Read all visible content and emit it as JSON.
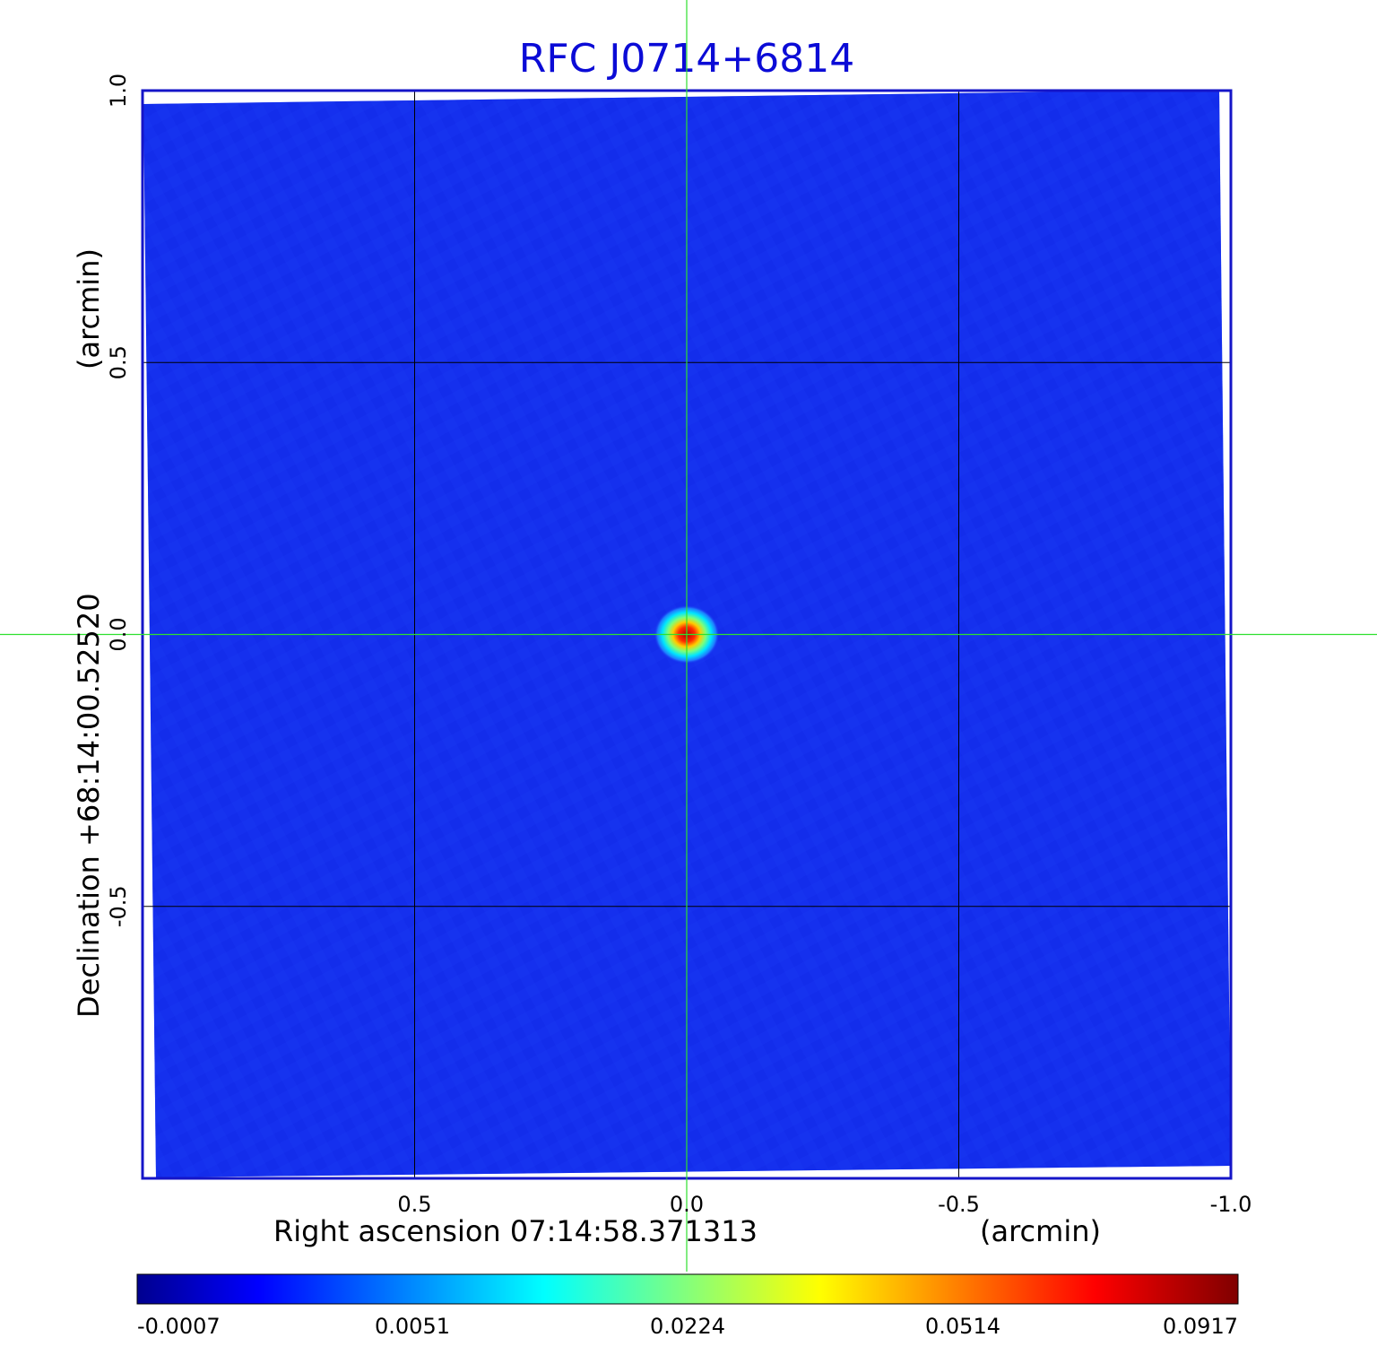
{
  "chart_data": {
    "type": "heatmap",
    "title": "RFC J0714+6814",
    "xlabel": "Right ascension  07:14:58.371313",
    "xunit": "(arcmin)",
    "ylabel": "Declination  +68:14:00.52520",
    "yunit": "(arcmin)",
    "x_ticks": [
      {
        "value": 0.5,
        "label": "0.5"
      },
      {
        "value": 0.0,
        "label": "0.0"
      },
      {
        "value": -0.5,
        "label": "-0.5"
      },
      {
        "value": -1.0,
        "label": "-1.0"
      }
    ],
    "y_ticks": [
      {
        "value": 1.0,
        "label": "1.0"
      },
      {
        "value": 0.5,
        "label": "0.5"
      },
      {
        "value": 0.0,
        "label": "0.0"
      },
      {
        "value": -0.5,
        "label": "-0.5"
      }
    ],
    "xlim": [
      1.0,
      -1.0
    ],
    "ylim": [
      -1.0,
      1.0
    ],
    "grid": true,
    "crosshair": {
      "x": 0.0,
      "y": 0.0
    },
    "source": {
      "x": 0.0,
      "y": 0.0,
      "peak": 0.0917,
      "fwhm_arcmin": 0.06
    },
    "colorbar": {
      "colormap": "jet",
      "ticks": [
        {
          "value": -0.0007,
          "label": "-0.0007",
          "pos": 0.0
        },
        {
          "value": 0.0051,
          "label": "0.0051",
          "pos": 0.25
        },
        {
          "value": 0.0224,
          "label": "0.0224",
          "pos": 0.5
        },
        {
          "value": 0.0514,
          "label": "0.0514",
          "pos": 0.75
        },
        {
          "value": 0.0917,
          "label": "0.0917",
          "pos": 1.0
        }
      ]
    },
    "colors": {
      "title": "#0b0bd6",
      "frame": "#1515c8",
      "background": "#1530ee",
      "grid": "#000000",
      "crosshair": "#2ee02e"
    }
  }
}
